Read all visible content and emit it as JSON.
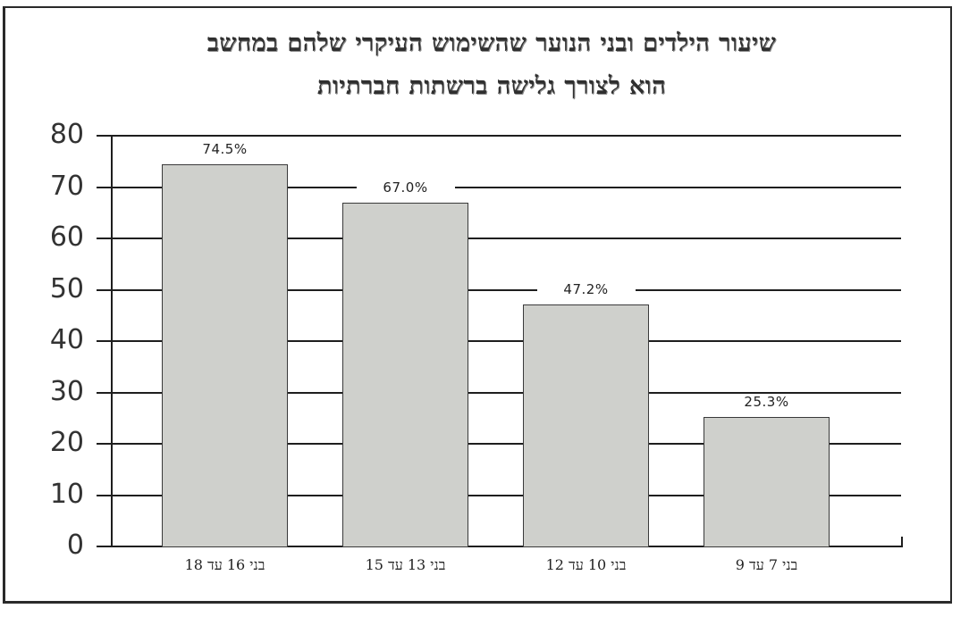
{
  "title": {
    "line1": "שיעור הילדים ובני הנוער שהשימוש העיקרי שלהם במחשב",
    "line2": "הוא לצורך גלישה ברשתות חברתיות"
  },
  "chart_data": {
    "type": "bar",
    "title": "שיעור הילדים ובני הנוער שהשימוש העיקרי שלהם במחשב הוא לצורך גלישה ברשתות חברתיות",
    "categories": [
      "בני 16 עד 18",
      "בני 13 עד 15",
      "בני 10 עד 12",
      "בני 7 עד 9"
    ],
    "values": [
      74.5,
      67.0,
      47.2,
      25.3
    ],
    "value_labels": [
      "74.5%",
      "67.0%",
      "47.2%",
      "25.3%"
    ],
    "xlabel": "",
    "ylabel": "",
    "ylim": [
      0,
      80
    ],
    "yticks": [
      "0",
      "10",
      "20",
      "30",
      "40",
      "50",
      "60",
      "70",
      "80"
    ],
    "grid": true,
    "legend": "none",
    "bar_color": "#cfd0cc",
    "grid_color": "#1e1e1e"
  }
}
